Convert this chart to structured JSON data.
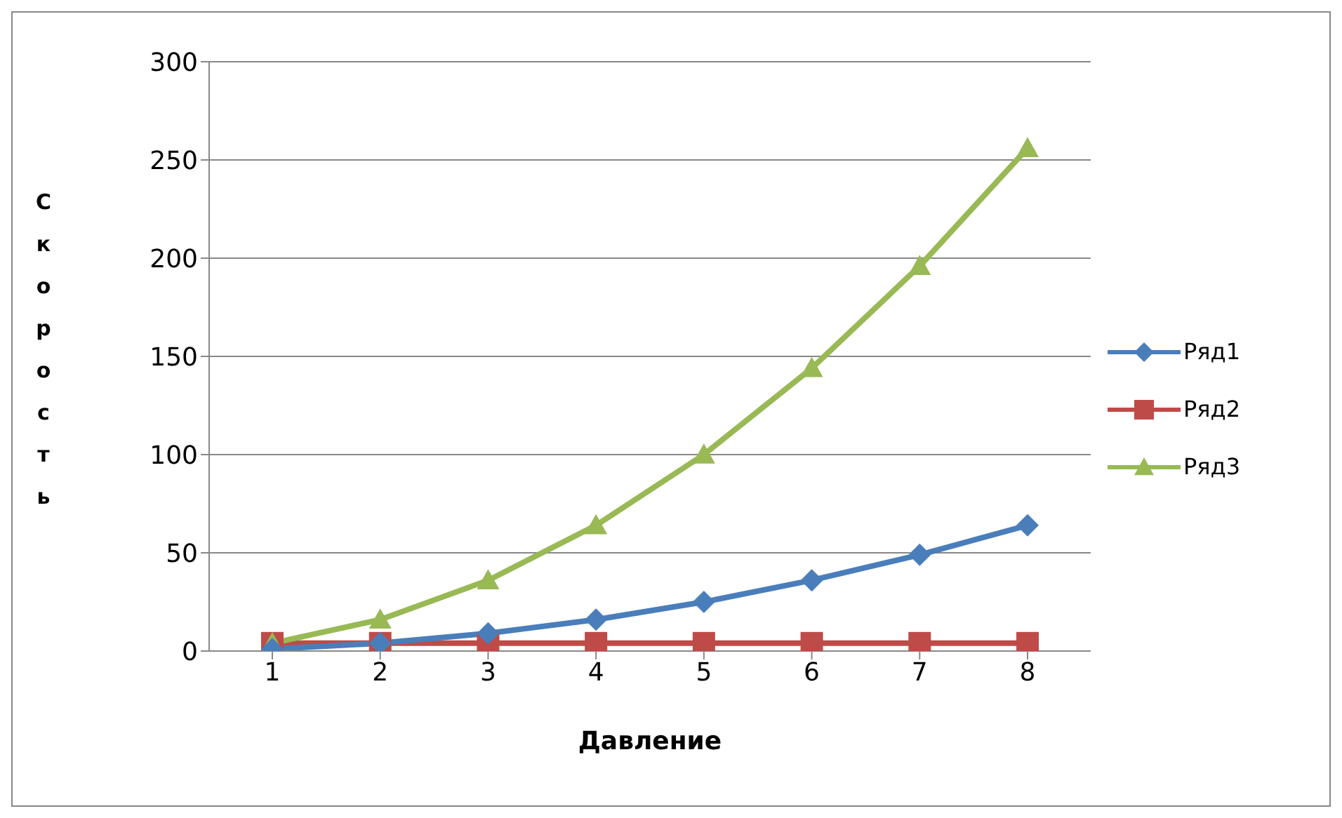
{
  "chart_data": {
    "type": "line",
    "xlabel": "Давление",
    "ylabel": "Скорость",
    "categories": [
      "1",
      "2",
      "3",
      "4",
      "5",
      "6",
      "7",
      "8"
    ],
    "series": [
      {
        "name": "Ряд1",
        "color": "#4a7ebb",
        "marker": "diamond",
        "values": [
          1,
          4,
          9,
          16,
          25,
          36,
          49,
          64
        ]
      },
      {
        "name": "Ряд2",
        "color": "#be4b48",
        "marker": "square",
        "values": [
          4,
          4,
          4,
          4,
          4,
          4,
          4,
          4
        ]
      },
      {
        "name": "Ряд3",
        "color": "#98b954",
        "marker": "triangle",
        "values": [
          4,
          16,
          36,
          64,
          100,
          144,
          196,
          256
        ]
      }
    ],
    "ylim": [
      0,
      300
    ],
    "yticks": [
      0,
      50,
      100,
      150,
      200,
      250,
      300
    ],
    "grid": "y",
    "legend": "right"
  }
}
